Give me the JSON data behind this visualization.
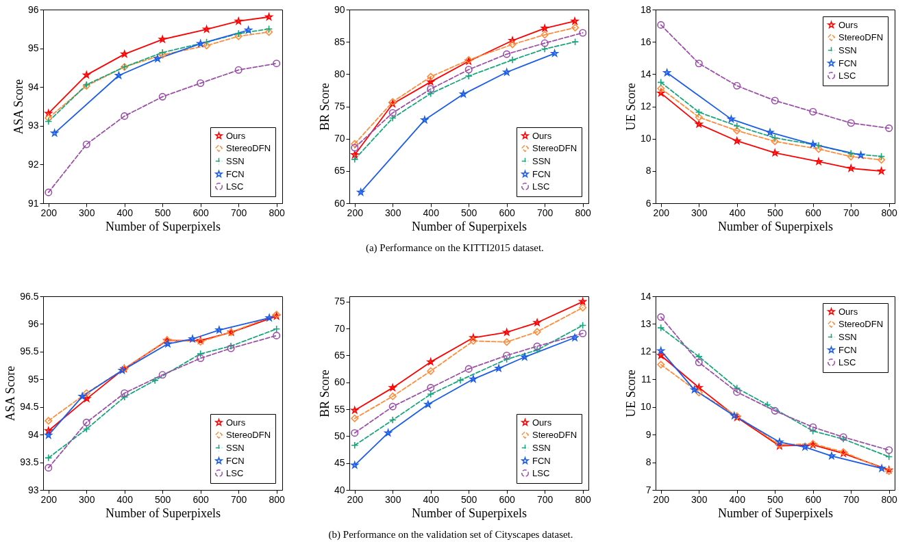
{
  "chart_data": [
    {
      "type": "line",
      "xlabel": "Number of Superpixels",
      "ylabel": "ASA Score",
      "xlim": [
        186,
        815
      ],
      "xticks": [
        200,
        300,
        400,
        500,
        600,
        700,
        800
      ],
      "ylim": [
        91,
        96
      ],
      "yticks": [
        91,
        92,
        93,
        94,
        95,
        96
      ],
      "legend": "bottom right",
      "series": [
        {
          "name": "Ours",
          "color": "#ff0000",
          "marker": "star",
          "line_style": "solid",
          "x": [
            200,
            300,
            400,
            500,
            616,
            700,
            780
          ],
          "values": [
            93.32,
            94.31,
            94.85,
            95.23,
            95.49,
            95.7,
            95.81
          ]
        },
        {
          "name": "StereoDFN",
          "color": "#ff8c3a",
          "marker": "diamond",
          "line_style": "dashed",
          "x": [
            200,
            300,
            400,
            500,
            616,
            700,
            780
          ],
          "values": [
            93.2,
            94.03,
            94.52,
            94.83,
            95.07,
            95.31,
            95.42
          ]
        },
        {
          "name": "SSN",
          "color": "#17a67c",
          "marker": "cross",
          "line_style": "dashed",
          "x": [
            200,
            300,
            400,
            500,
            616,
            700,
            780
          ],
          "values": [
            93.11,
            94.06,
            94.52,
            94.89,
            95.16,
            95.38,
            95.5
          ]
        },
        {
          "name": "FCN",
          "color": "#1a5be8",
          "marker": "star",
          "line_style": "solid",
          "x": [
            216,
            385,
            487,
            600,
            726
          ],
          "values": [
            92.81,
            94.3,
            94.73,
            95.12,
            95.47
          ]
        },
        {
          "name": "LSC",
          "color": "#9b4fa8",
          "marker": "circle",
          "line_style": "dashed",
          "x": [
            200,
            300,
            400,
            500,
            600,
            700,
            800
          ],
          "values": [
            91.28,
            92.52,
            93.25,
            93.75,
            94.1,
            94.44,
            94.61
          ]
        }
      ]
    },
    {
      "type": "line",
      "xlabel": "Number of Superpixels",
      "ylabel": "BR Score",
      "xlim": [
        186,
        815
      ],
      "xticks": [
        200,
        300,
        400,
        500,
        600,
        700,
        800
      ],
      "ylim": [
        60,
        90
      ],
      "yticks": [
        60,
        65,
        70,
        75,
        80,
        85,
        90
      ],
      "legend": "bottom right",
      "annotations": [
        "(a) Performance on the KITTI2015 dataset."
      ],
      "series": [
        {
          "name": "Ours",
          "color": "#ff0000",
          "marker": "star",
          "line_style": "solid",
          "x": [
            200,
            300,
            400,
            500,
            615,
            700,
            779
          ],
          "values": [
            67.5,
            75.4,
            78.8,
            82.0,
            85.2,
            87.1,
            88.2
          ]
        },
        {
          "name": "StereoDFN",
          "color": "#ff8c3a",
          "marker": "diamond",
          "line_style": "dashed",
          "x": [
            200,
            300,
            400,
            500,
            615,
            700,
            780
          ],
          "values": [
            69.2,
            75.7,
            79.6,
            82.2,
            84.6,
            86.1,
            87.2
          ]
        },
        {
          "name": "SSN",
          "color": "#17a67c",
          "marker": "cross",
          "line_style": "dashed",
          "x": [
            200,
            300,
            400,
            500,
            615,
            700,
            780
          ],
          "values": [
            66.8,
            73.2,
            77.0,
            79.7,
            82.2,
            83.9,
            85.0
          ]
        },
        {
          "name": "FCN",
          "color": "#1a5be8",
          "marker": "star",
          "line_style": "solid",
          "x": [
            216,
            384,
            486,
            600,
            726
          ],
          "values": [
            61.7,
            72.9,
            76.9,
            80.3,
            83.2
          ]
        },
        {
          "name": "LSC",
          "color": "#9b4fa8",
          "marker": "circle",
          "line_style": "dashed",
          "x": [
            200,
            300,
            400,
            500,
            600,
            700,
            800
          ],
          "values": [
            68.6,
            74.0,
            77.7,
            80.7,
            83.1,
            84.8,
            86.4
          ]
        }
      ]
    },
    {
      "type": "line",
      "xlabel": "Number of Superpixels",
      "ylabel": "UE Score",
      "xlim": [
        186,
        815
      ],
      "xticks": [
        200,
        300,
        400,
        500,
        600,
        700,
        800
      ],
      "ylim": [
        6,
        18
      ],
      "yticks": [
        6,
        8,
        10,
        12,
        14,
        16,
        18
      ],
      "legend": "top right",
      "series": [
        {
          "name": "Ours",
          "color": "#ff0000",
          "marker": "star",
          "line_style": "solid",
          "x": [
            200,
            300,
            400,
            500,
            615,
            700,
            780
          ],
          "values": [
            12.82,
            10.9,
            9.86,
            9.12,
            8.58,
            8.16,
            7.99
          ]
        },
        {
          "name": "StereoDFN",
          "color": "#ff8c3a",
          "marker": "diamond",
          "line_style": "dashed",
          "x": [
            200,
            300,
            400,
            500,
            615,
            700,
            780
          ],
          "values": [
            13.11,
            11.33,
            10.5,
            9.83,
            9.36,
            8.89,
            8.69
          ]
        },
        {
          "name": "SSN",
          "color": "#17a67c",
          "marker": "cross",
          "line_style": "dashed",
          "x": [
            200,
            300,
            400,
            500,
            615,
            700,
            780
          ],
          "values": [
            13.49,
            11.64,
            10.79,
            10.05,
            9.58,
            9.08,
            8.9
          ]
        },
        {
          "name": "FCN",
          "color": "#1a5be8",
          "marker": "star",
          "line_style": "solid",
          "x": [
            216,
            385,
            487,
            600,
            726
          ],
          "values": [
            14.09,
            11.21,
            10.39,
            9.65,
            8.98
          ]
        },
        {
          "name": "LSC",
          "color": "#9b4fa8",
          "marker": "circle",
          "line_style": "dashed",
          "x": [
            200,
            300,
            400,
            500,
            600,
            700,
            800
          ],
          "values": [
            17.05,
            14.66,
            13.28,
            12.36,
            11.67,
            10.97,
            10.65
          ]
        }
      ]
    },
    {
      "type": "line",
      "xlabel": "Number of Superpixels",
      "ylabel": "ASA Score",
      "xlim": [
        186,
        815
      ],
      "xticks": [
        200,
        300,
        400,
        500,
        600,
        700,
        800
      ],
      "ylim": [
        93,
        96.5
      ],
      "yticks": [
        93,
        93.5,
        94,
        94.5,
        95,
        95.5,
        96,
        96.5
      ],
      "legend": "bottom right",
      "series": [
        {
          "name": "Ours",
          "color": "#ff0000",
          "marker": "star",
          "line_style": "solid",
          "x": [
            200,
            301,
            399,
            512,
            600,
            681,
            800
          ],
          "values": [
            94.07,
            94.65,
            95.19,
            95.7,
            95.7,
            95.85,
            96.14
          ]
        },
        {
          "name": "StereoDFN",
          "color": "#ff8c3a",
          "marker": "diamond",
          "line_style": "dashed",
          "x": [
            200,
            300,
            400,
            512,
            600,
            680,
            800
          ],
          "values": [
            94.25,
            94.75,
            95.19,
            95.71,
            95.68,
            95.85,
            96.17
          ]
        },
        {
          "name": "SSN",
          "color": "#17a67c",
          "marker": "cross",
          "line_style": "dashed",
          "x": [
            200,
            300,
            400,
            480,
            600,
            680,
            800
          ],
          "values": [
            93.58,
            94.1,
            94.68,
            94.98,
            95.46,
            95.6,
            95.91
          ]
        },
        {
          "name": "FCN",
          "color": "#1a5be8",
          "marker": "star",
          "line_style": "solid",
          "x": [
            200,
            289,
            394,
            514,
            579,
            649,
            781
          ],
          "values": [
            93.99,
            94.69,
            95.16,
            95.64,
            95.73,
            95.89,
            96.11
          ]
        },
        {
          "name": "LSC",
          "color": "#9b4fa8",
          "marker": "circle",
          "line_style": "dashed",
          "x": [
            200,
            300,
            400,
            500,
            600,
            680,
            800
          ],
          "values": [
            93.4,
            94.22,
            94.75,
            95.08,
            95.38,
            95.56,
            95.79
          ]
        }
      ]
    },
    {
      "type": "line",
      "xlabel": "Number of Superpixels",
      "ylabel": "BR Score",
      "xlim": [
        186,
        815
      ],
      "xticks": [
        200,
        300,
        400,
        500,
        600,
        700,
        800
      ],
      "ylim": [
        40,
        76
      ],
      "yticks": [
        40,
        45,
        50,
        55,
        60,
        65,
        70,
        75
      ],
      "legend": "bottom right",
      "annotations": [
        "(b) Performance on the validation set of Cityscapes dataset."
      ],
      "series": [
        {
          "name": "Ours",
          "color": "#ff0000",
          "marker": "star",
          "line_style": "solid",
          "x": [
            200,
            300,
            400,
            512,
            600,
            680,
            800
          ],
          "values": [
            54.8,
            59.0,
            63.8,
            68.3,
            69.3,
            71.1,
            75.0
          ]
        },
        {
          "name": "StereoDFN",
          "color": "#ff8c3a",
          "marker": "diamond",
          "line_style": "dashed",
          "x": [
            200,
            300,
            400,
            512,
            600,
            680,
            800
          ],
          "values": [
            53.3,
            57.4,
            62.1,
            67.7,
            67.5,
            69.4,
            73.9
          ]
        },
        {
          "name": "SSN",
          "color": "#17a67c",
          "marker": "cross",
          "line_style": "dashed",
          "x": [
            200,
            300,
            400,
            478,
            600,
            680,
            800
          ],
          "values": [
            48.3,
            53.0,
            57.8,
            60.4,
            64.3,
            66.0,
            70.6
          ]
        },
        {
          "name": "FCN",
          "color": "#1a5be8",
          "marker": "star",
          "line_style": "solid",
          "x": [
            200,
            288,
            393,
            512,
            579,
            647,
            779
          ],
          "values": [
            44.6,
            50.6,
            55.9,
            60.6,
            62.6,
            64.7,
            68.3
          ]
        },
        {
          "name": "LSC",
          "color": "#9b4fa8",
          "marker": "circle",
          "line_style": "dashed",
          "x": [
            200,
            300,
            400,
            500,
            600,
            680,
            800
          ],
          "values": [
            50.6,
            55.5,
            59.0,
            62.5,
            65.0,
            66.7,
            69.1
          ]
        }
      ]
    },
    {
      "type": "line",
      "xlabel": "Number of Superpixels",
      "ylabel": "UE Score",
      "xlim": [
        186,
        815
      ],
      "xticks": [
        200,
        300,
        400,
        500,
        600,
        700,
        800
      ],
      "ylim": [
        7,
        14
      ],
      "yticks": [
        7,
        8,
        9,
        10,
        11,
        12,
        13,
        14
      ],
      "legend": "top right",
      "series": [
        {
          "name": "Ours",
          "color": "#ff0000",
          "marker": "star",
          "line_style": "solid",
          "x": [
            200,
            300,
            400,
            512,
            600,
            680,
            800
          ],
          "values": [
            11.86,
            10.7,
            9.62,
            8.59,
            8.63,
            8.32,
            7.72
          ]
        },
        {
          "name": "StereoDFN",
          "color": "#ff8c3a",
          "marker": "diamond",
          "line_style": "dashed",
          "x": [
            200,
            300,
            400,
            512,
            600,
            680,
            800
          ],
          "values": [
            11.53,
            10.52,
            9.67,
            8.63,
            8.67,
            8.37,
            7.68
          ]
        },
        {
          "name": "SSN",
          "color": "#17a67c",
          "marker": "cross",
          "line_style": "dashed",
          "x": [
            200,
            300,
            400,
            480,
            600,
            680,
            800
          ],
          "values": [
            12.86,
            11.82,
            10.68,
            10.08,
            9.13,
            8.84,
            8.2
          ]
        },
        {
          "name": "FCN",
          "color": "#1a5be8",
          "marker": "star",
          "line_style": "solid",
          "x": [
            200,
            288,
            393,
            512,
            579,
            649,
            781
          ],
          "values": [
            12.03,
            10.62,
            9.68,
            8.73,
            8.55,
            8.23,
            7.78
          ]
        },
        {
          "name": "LSC",
          "color": "#9b4fa8",
          "marker": "circle",
          "line_style": "dashed",
          "x": [
            200,
            300,
            400,
            500,
            600,
            680,
            800
          ],
          "values": [
            13.25,
            11.61,
            10.54,
            9.86,
            9.27,
            8.91,
            8.44
          ]
        }
      ]
    }
  ]
}
